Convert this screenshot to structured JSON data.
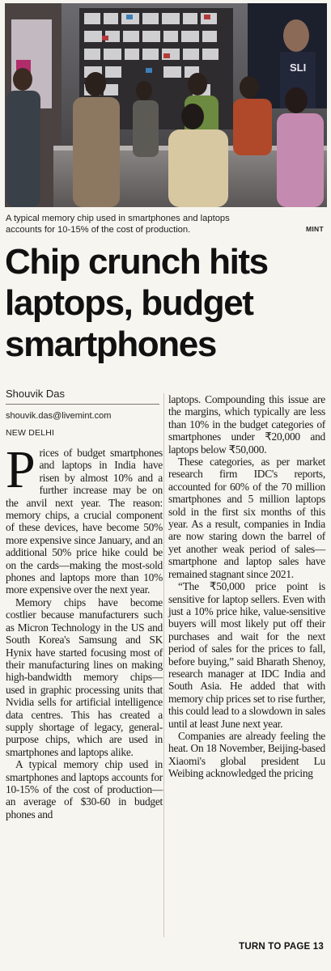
{
  "photo": {
    "description_icon": "photo-shop-interior-icon",
    "sign_fragment": "SLI"
  },
  "caption": "A typical memory chip used in smartphones and laptops accounts for 10-15% of the cost of production.",
  "credit": "MINT",
  "headline": "Chip crunch hits laptops, budget smartphones",
  "byline": {
    "author": "Shouvik Das",
    "email": "shouvik.das@livemint.com",
    "dateline": "NEW DELHI"
  },
  "body": {
    "dropcap": "P",
    "p1": "rices of budget smartphones and laptops in India have risen by almost 10% and a further increase may be on the anvil next year. The reason: memory chips, a crucial component of these devices, have become 50% more expensive since January, and an additional 50% price hike could be on the cards—making the most-sold phones and laptops more than 10% more expensive over the next year.",
    "p2": "Memory chips have become costlier because manufacturers such as Micron Technology in the US and South Korea's Samsung and SK Hynix have started focusing most of their manufacturing lines on making high-bandwidth memory chips—used in graphic processing units that Nvidia sells for artificial intelligence data centres. This has created a supply shortage of legacy, general-purpose chips, which are used in smartphones and laptops alike.",
    "p3": "A typical memory chip used in smartphones and laptops accounts for 10-15% of the cost of production—an average of $30-60 in budget phones and",
    "p4": "laptops. Compounding this issue are the margins, which typically are less than 10% in the budget categories of smartphones under ₹20,000 and laptops below ₹50,000.",
    "p5": "These categories, as per market research firm IDC's reports, accounted for 60% of the 70 million smartphones and 5 million laptops sold in the first six months of this year. As a result, companies in India are now staring down the barrel of yet another weak period of sales—smartphone and laptop sales have remained stagnant since 2021.",
    "p6": "“The ₹50,000 price point is sensitive for laptop sellers. Even with just a 10% price hike, value-sensitive buyers will most likely put off their purchases and wait for the next period of sales for the prices to fall, before buying,” said Bharath Shenoy, research manager at IDC India and South Asia. He added that with memory chip prices set to rise further, this could lead to a slowdown in sales until at least June next year.",
    "p7": "Companies are already feeling the heat. On 18 November, Beijing-based Xiaomi's global president Lu Weibing acknowledged the pricing"
  },
  "jump": "TURN TO PAGE 13"
}
